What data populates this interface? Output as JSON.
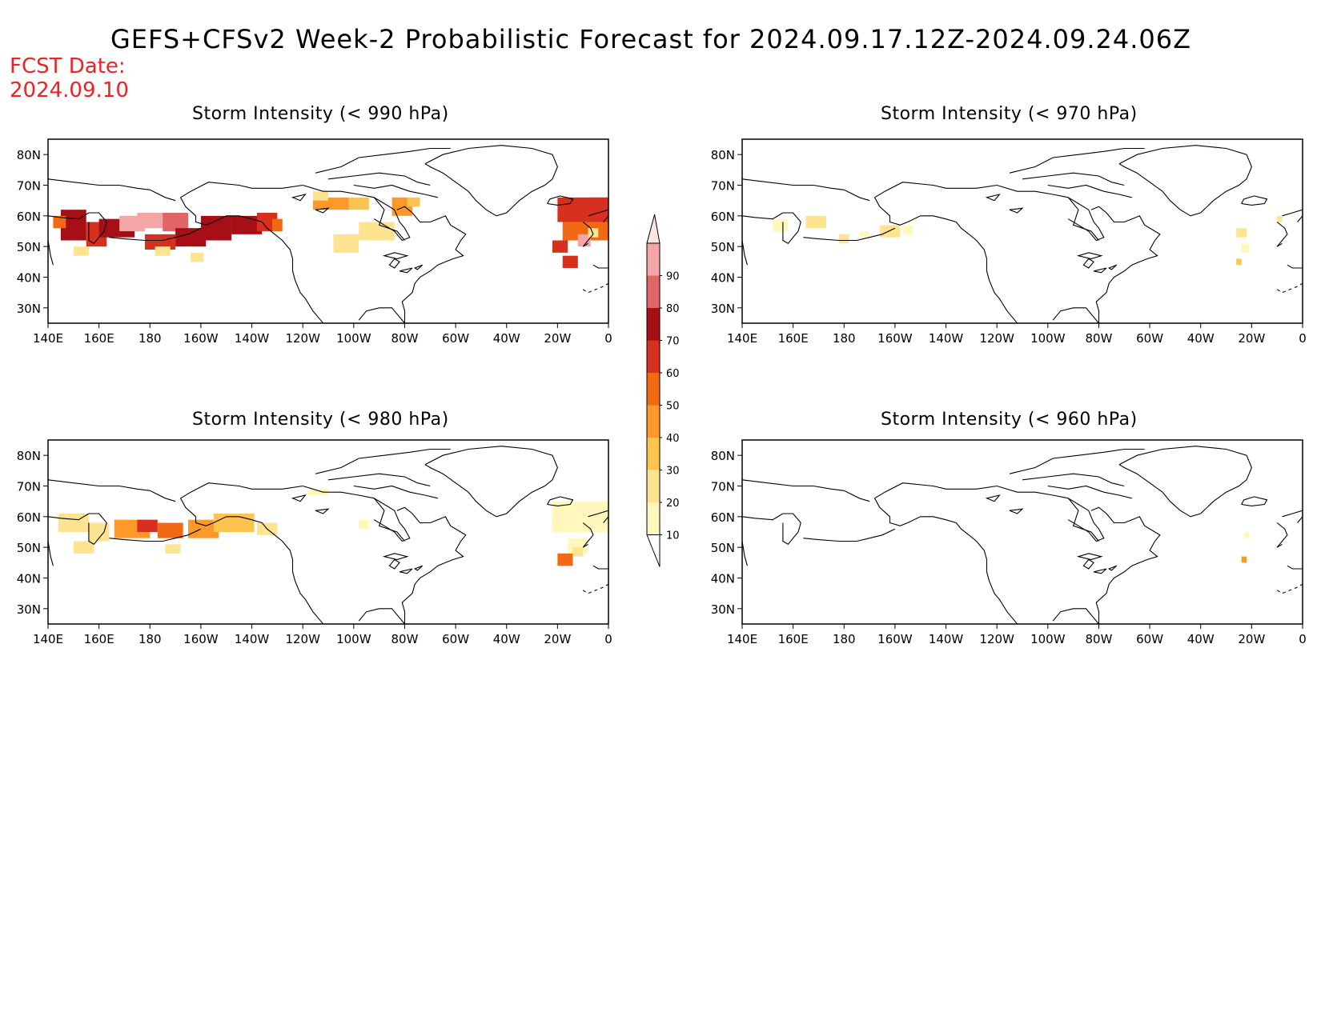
{
  "title": "GEFS+CFSv2 Week-2 Probabilistic Forecast for 2024.09.17.12Z-2024.09.24.06Z",
  "fcst_label": "FCST Date:",
  "fcst_value": "2024.09.10",
  "lon_ticks": [
    "140E",
    "160E",
    "180",
    "160W",
    "140W",
    "120W",
    "100W",
    "80W",
    "60W",
    "40W",
    "20W",
    "0"
  ],
  "lat_ticks": [
    "80N",
    "70N",
    "60N",
    "50N",
    "40N",
    "30N"
  ],
  "colorbar": {
    "levels": [
      "10",
      "20",
      "30",
      "40",
      "50",
      "60",
      "70",
      "80",
      "90"
    ],
    "colors": [
      "#fff7bc",
      "#fee391",
      "#fec44f",
      "#fe9929",
      "#f16913",
      "#d7301f",
      "#a50f15",
      "#e06666",
      "#f4a6a6",
      "#fce4e4"
    ]
  },
  "panels": [
    {
      "id": "p990",
      "title": "Storm Intensity (< 990 hPa)"
    },
    {
      "id": "p970",
      "title": "Storm Intensity (< 970 hPa)"
    },
    {
      "id": "p980",
      "title": "Storm Intensity (< 980 hPa)"
    },
    {
      "id": "p960",
      "title": "Storm Intensity (< 960 hPa)"
    }
  ]
}
